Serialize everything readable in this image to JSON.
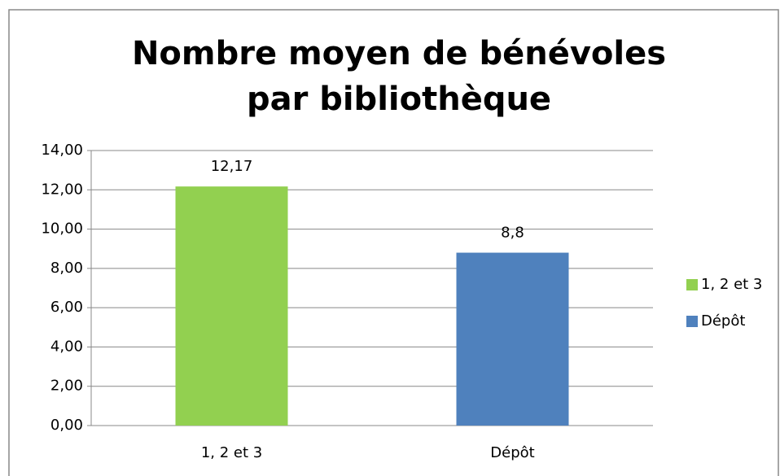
{
  "chart_data": {
    "type": "bar",
    "title": "Nombre moyen de bénévoles par bibliothèque",
    "categories": [
      "1, 2 et 3",
      "Dépôt"
    ],
    "values": [
      12.17,
      8.8
    ],
    "value_labels": [
      "12,17",
      "8,8"
    ],
    "colors": [
      "#92d050",
      "#4f81bd"
    ],
    "ylim": [
      0,
      14
    ],
    "yticks": [
      {
        "value": 0,
        "label": "0,00"
      },
      {
        "value": 2,
        "label": "2,00"
      },
      {
        "value": 4,
        "label": "4,00"
      },
      {
        "value": 6,
        "label": "6,00"
      },
      {
        "value": 8,
        "label": "8,00"
      },
      {
        "value": 10,
        "label": "10,00"
      },
      {
        "value": 12,
        "label": "12,00"
      },
      {
        "value": 14,
        "label": "14,00"
      }
    ],
    "grid": true,
    "legend": "right"
  }
}
